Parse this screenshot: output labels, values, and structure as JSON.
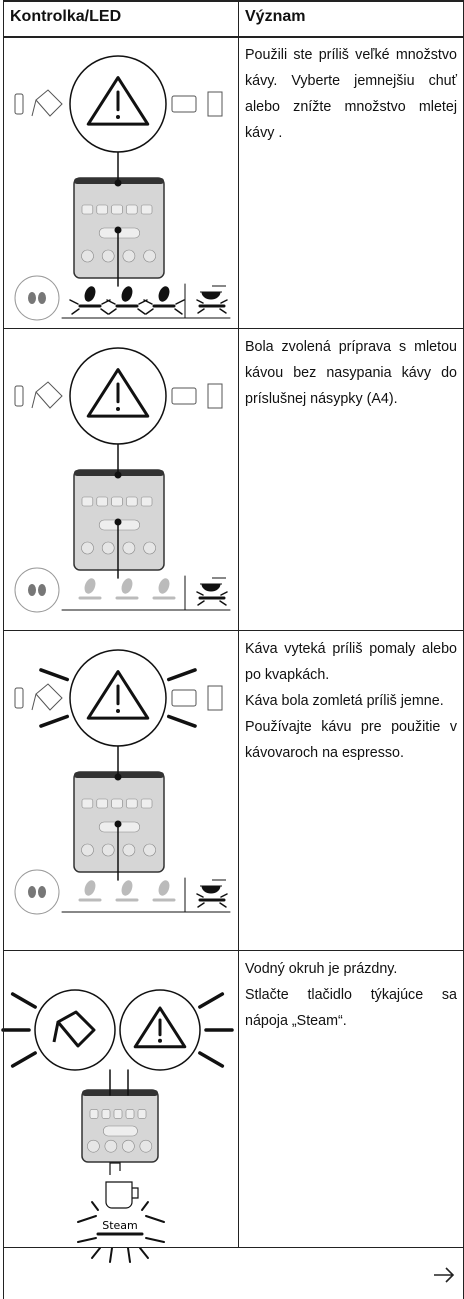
{
  "header": {
    "col1": "Kontrolka/LED",
    "col2": "Význam"
  },
  "rows": [
    {
      "paragraphs": [
        "Použili ste príliš veľké množstvo kávy. Vyberte jemnejšiu chuť alebo znížte množstvo mletej kávy ."
      ]
    },
    {
      "paragraphs": [
        "Bola zvolená príprava s mletou kávou bez nasypania kávy do príslušnej násypky (A4)."
      ]
    },
    {
      "paragraphs": [
        "Káva vyteká príliš pomaly alebo po kvapkách.",
        "Káva bola zomletá príliš jemne.",
        "Používajte kávu pre použitie v kávovaroch na espresso."
      ]
    },
    {
      "paragraphs": [
        "Vodný okruh je prázdny.",
        "Stlačte tlačidlo týkajúce sa nápoja „Steam“."
      ],
      "illustration_label": "Steam"
    }
  ]
}
